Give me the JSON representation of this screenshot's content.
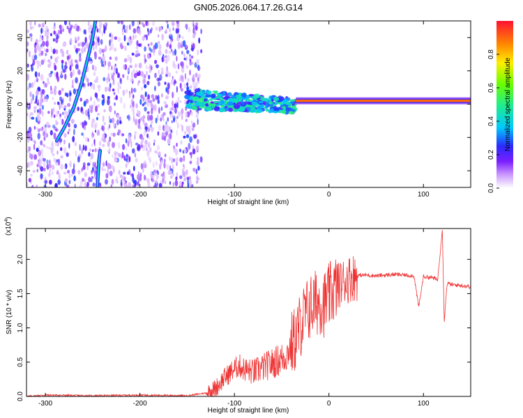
{
  "title": "GN05.2026.064.17.26.G14",
  "chart_data": [
    {
      "type": "heatmap",
      "name": "spectrogram",
      "xlabel": "Height of straight line (km)",
      "ylabel": "Frequency (Hz)",
      "xlim": [
        -320,
        150
      ],
      "ylim": [
        -50,
        50
      ],
      "xticks": [
        -300,
        -200,
        -100,
        0,
        100
      ],
      "yticks": [
        -40,
        -20,
        0,
        20,
        40
      ],
      "colorbar": {
        "label": "Normalized spectral amplitude",
        "range": [
          0,
          1
        ],
        "ticks": [
          0.0,
          0.2,
          0.4,
          0.6,
          0.8
        ],
        "tick_labels": [
          "0.0",
          "0.2",
          "0.4",
          "0.6",
          "0.8"
        ]
      },
      "features": [
        {
          "name": "noise-region",
          "x_range": [
            -320,
            -135
          ],
          "amplitude": 0.12
        },
        {
          "name": "moving-track-upper",
          "points": [
            [
              -288,
              -22
            ],
            [
              -280,
              -14
            ],
            [
              -270,
              -2
            ],
            [
              -262,
              12
            ],
            [
              -255,
              28
            ],
            [
              -250,
              40
            ],
            [
              -247,
              50
            ]
          ]
        },
        {
          "name": "moving-track-lower",
          "points": [
            [
              -245,
              -50
            ],
            [
              -244,
              -40
            ],
            [
              -243,
              -32
            ],
            [
              -242,
              -28
            ]
          ]
        },
        {
          "name": "dispersed-signal",
          "x_range": [
            -150,
            -35
          ],
          "freq_range": [
            -12,
            8
          ],
          "amplitude": 0.4
        },
        {
          "name": "tone-line",
          "x_range": [
            -35,
            150
          ],
          "freq_center": 2,
          "amplitude": 0.9
        }
      ]
    },
    {
      "type": "line",
      "name": "snr",
      "xlabel": "Height of straight line (km)",
      "ylabel": "SNR (10 * v/v)",
      "exponent_label": "(x10",
      "exponent_power": "4",
      "exponent_close": ")",
      "xlim": [
        -320,
        150
      ],
      "ylim": [
        0,
        2.45
      ],
      "xticks": [
        -300,
        -200,
        -100,
        0,
        100
      ],
      "yticks": [
        0.0,
        0.5,
        1.0,
        1.5,
        2.0
      ],
      "ytick_labels": [
        "0.0",
        "0.5",
        "1.0",
        "1.5",
        "2.0"
      ],
      "color": "#ee3333",
      "series": [
        {
          "name": "SNR",
          "x": [
            -320,
            -300,
            -250,
            -200,
            -150,
            -130,
            -120,
            -110,
            -100,
            -95,
            -90,
            -80,
            -70,
            -60,
            -50,
            -45,
            -40,
            -35,
            -30,
            -25,
            -20,
            -15,
            -10,
            -5,
            0,
            5,
            10,
            15,
            20,
            25,
            30,
            35,
            40,
            50,
            60,
            70,
            80,
            90,
            95,
            100,
            110,
            115,
            120,
            122,
            125,
            130,
            140,
            150
          ],
          "y": [
            0.0,
            0.02,
            0.01,
            0.02,
            0.01,
            0.05,
            0.12,
            0.28,
            0.4,
            0.45,
            0.4,
            0.35,
            0.42,
            0.48,
            0.55,
            0.6,
            0.75,
            0.85,
            1.05,
            1.2,
            1.3,
            1.35,
            1.4,
            1.35,
            1.45,
            1.55,
            1.62,
            1.68,
            1.71,
            1.74,
            1.76,
            1.77,
            1.77,
            1.76,
            1.77,
            1.78,
            1.77,
            1.76,
            1.3,
            1.75,
            1.73,
            1.7,
            2.45,
            1.1,
            1.65,
            1.63,
            1.62,
            1.6
          ]
        }
      ]
    }
  ]
}
